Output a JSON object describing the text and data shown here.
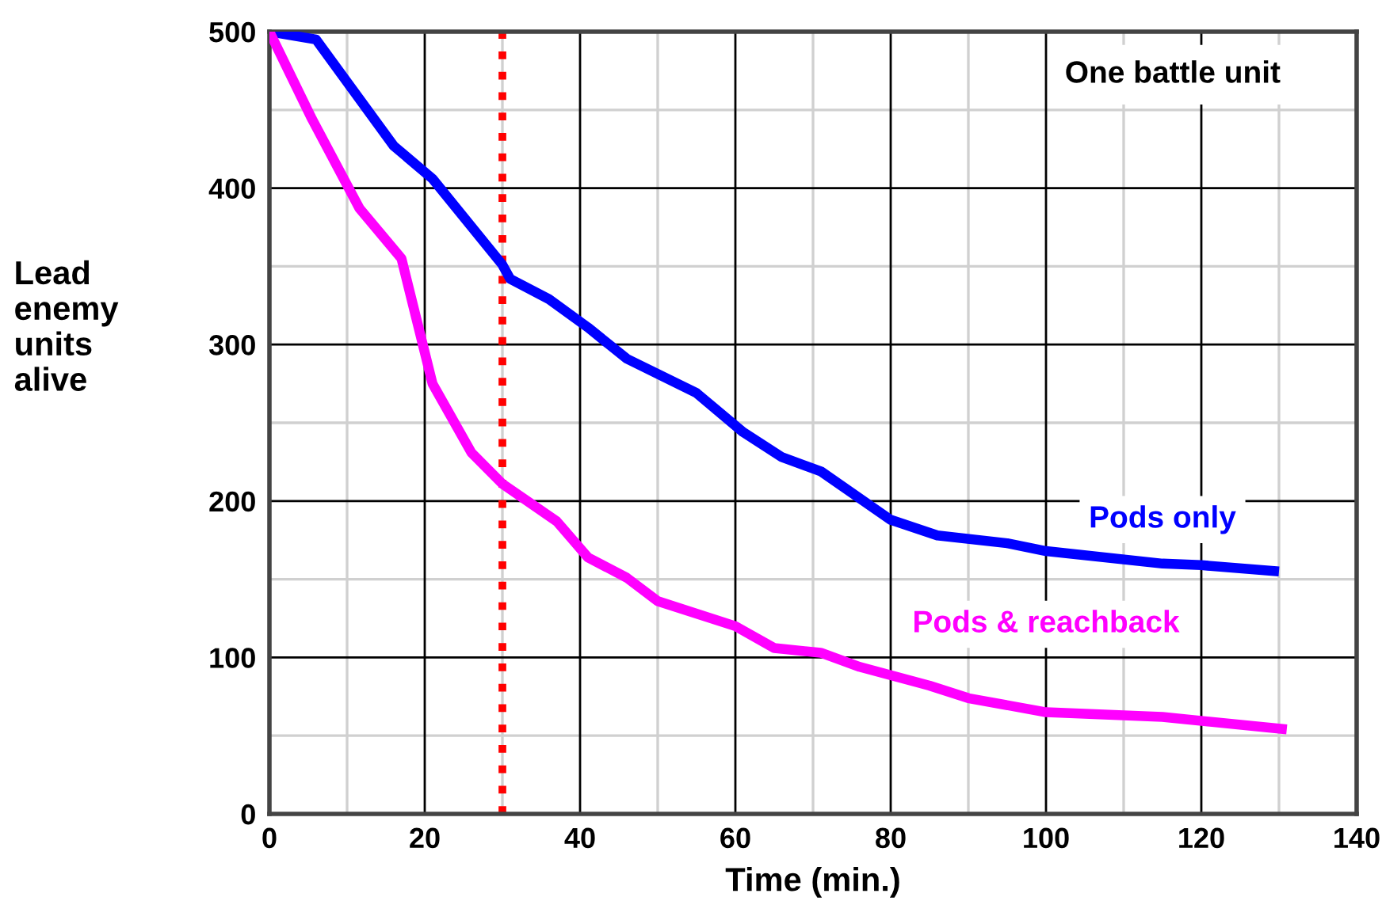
{
  "chart_data": {
    "type": "line",
    "xlabel": "Time (min.)",
    "ylabel": "Lead\nenemy\nunits\nalive",
    "xlim": [
      0,
      140
    ],
    "ylim": [
      0,
      500
    ],
    "xticks": [
      0,
      {
        "value": 10,
        "label": null
      },
      20,
      {
        "value": 30,
        "label": null
      },
      40,
      {
        "value": 50,
        "label": null
      },
      60,
      {
        "value": 70,
        "label": null
      },
      80,
      {
        "value": 90,
        "label": null
      },
      100,
      {
        "value": 110,
        "label": null
      },
      120,
      {
        "value": 130,
        "label": null
      },
      140
    ],
    "yticks": [
      0,
      {
        "value": 50,
        "label": null
      },
      100,
      {
        "value": 150,
        "label": null
      },
      200,
      {
        "value": 250,
        "label": null
      },
      300,
      {
        "value": 350,
        "label": null
      },
      400,
      {
        "value": 450,
        "label": null
      },
      500
    ],
    "grid": true,
    "legend": false,
    "marker": "none",
    "line_style": "solid",
    "annotations": [
      "One battle unit"
    ],
    "ref_lines": [
      {
        "axis": "x",
        "value": 30,
        "label": null,
        "color": "#ff0000",
        "line_style": "dotted"
      }
    ],
    "series": [
      {
        "name": "Pods only",
        "color": "#0000ff",
        "x": [
          0,
          6,
          16,
          21,
          30,
          31,
          36,
          41,
          46,
          55,
          61,
          66,
          71,
          80,
          86,
          95,
          100,
          115,
          120,
          130
        ],
        "values": [
          500,
          495,
          427,
          406,
          351,
          342,
          329,
          311,
          291,
          269,
          244,
          228,
          219,
          188,
          178,
          173,
          168,
          160,
          159,
          155
        ]
      },
      {
        "name": "Pods & reachback",
        "color": "#ff00ff",
        "x": [
          0,
          5.5,
          11.6,
          17,
          21,
          26,
          30,
          37,
          41,
          46,
          50,
          60,
          65,
          71,
          76,
          85,
          90,
          100,
          115,
          131
        ],
        "values": [
          500,
          444,
          387,
          355,
          275,
          231,
          211,
          187,
          164,
          151,
          136,
          120,
          106,
          103,
          94,
          82,
          74,
          65,
          62,
          54
        ]
      }
    ]
  }
}
